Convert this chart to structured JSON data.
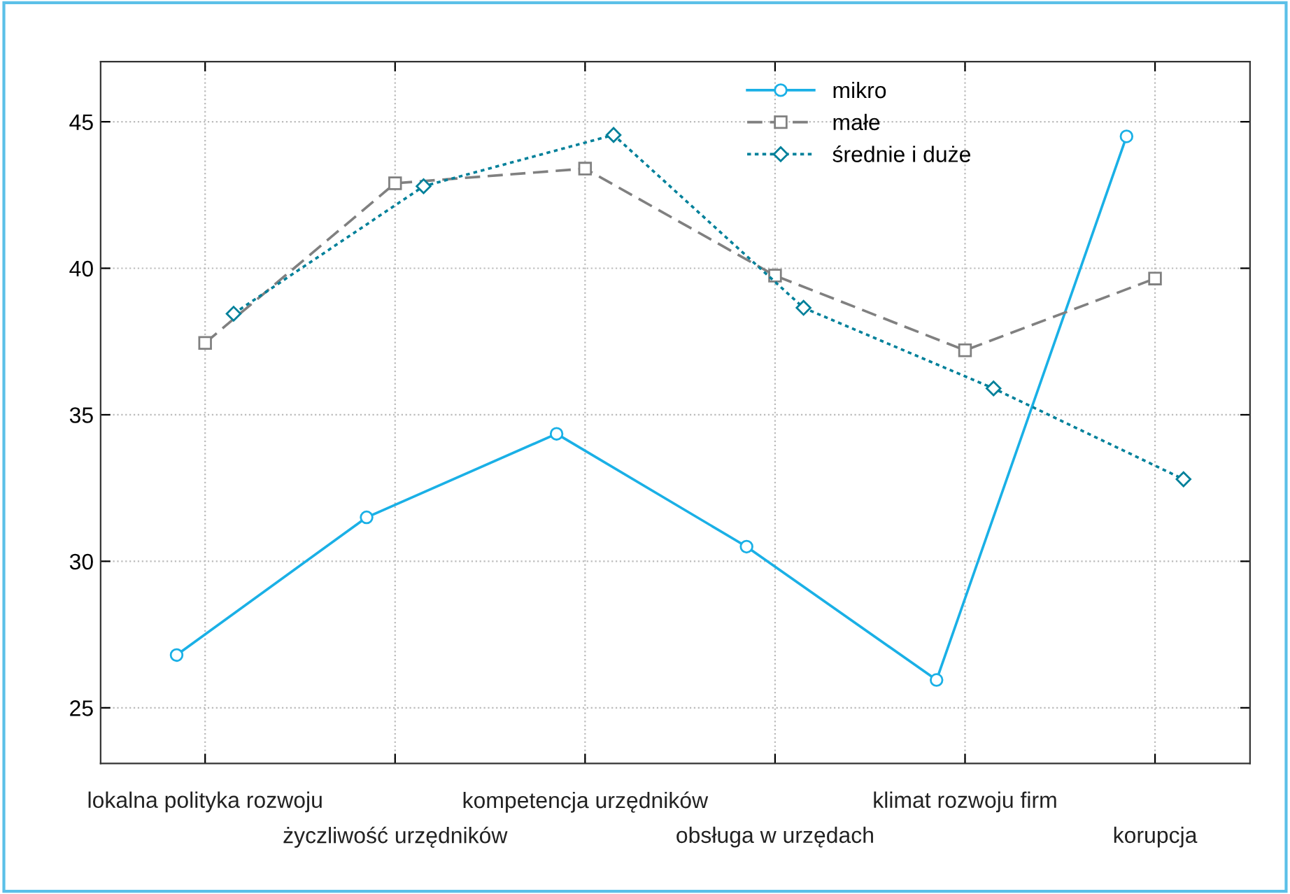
{
  "chart_data": {
    "type": "line",
    "categories": [
      "lokalna polityka rozwoju",
      "życzliwość urzędników",
      "kompetencja urzędników",
      "obsługa w urzędach",
      "klimat rozwoju firm",
      "korupcja"
    ],
    "series": [
      {
        "name": "mikro",
        "color": "#1ab0e6",
        "marker": "circle",
        "line_style": "solid",
        "values": [
          26.8,
          31.5,
          34.35,
          30.5,
          25.95,
          44.5
        ]
      },
      {
        "name": "małe",
        "color": "#808080",
        "marker": "square",
        "line_style": "dashed",
        "values": [
          37.45,
          42.9,
          43.4,
          39.75,
          37.2,
          39.65
        ]
      },
      {
        "name": "średnie i duże",
        "color": "#00809a",
        "marker": "diamond",
        "line_style": "dotted",
        "values": [
          38.45,
          42.8,
          44.55,
          38.65,
          35.9,
          32.8
        ]
      }
    ],
    "ylim": [
      23.1,
      47.05
    ],
    "yticks": [
      25,
      30,
      35,
      40,
      45
    ],
    "grid": true,
    "legend": "top"
  }
}
